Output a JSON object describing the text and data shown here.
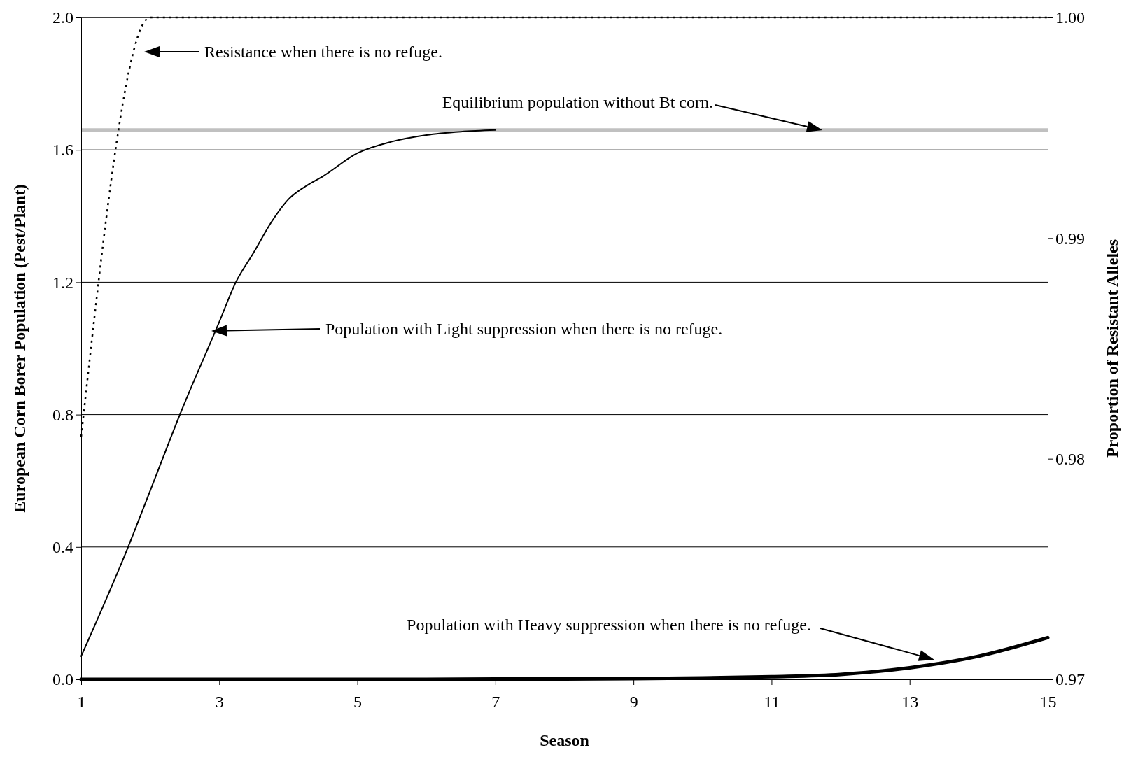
{
  "chart_data": {
    "type": "line",
    "xlabel": "Season",
    "ylabel": "European Corn Borer Population (Pest/Plant)",
    "y2label": "Proportion of Resistant Alleles",
    "xlim": [
      1,
      15
    ],
    "xticks": [
      1,
      3,
      5,
      7,
      9,
      11,
      13,
      15
    ],
    "ylim": [
      0,
      2
    ],
    "yticks": [
      {
        "value": 0,
        "label": "0.0"
      },
      {
        "value": 0.4,
        "label": "0.4"
      },
      {
        "value": 0.8,
        "label": "0.8"
      },
      {
        "value": 1.2,
        "label": "1.2"
      },
      {
        "value": 1.6,
        "label": "1.6"
      },
      {
        "value": 2,
        "label": "2.0"
      }
    ],
    "y2lim": [
      0.97,
      1
    ],
    "y2ticks": [
      0.97,
      0.98,
      0.99,
      {
        "value": 1,
        "label": "1.00"
      }
    ],
    "grid": "y",
    "marker": "none",
    "series": [
      {
        "color": "#000000",
        "line_style": "solid",
        "x": [
          1,
          1.68,
          2,
          2.43,
          3,
          3.24,
          3.5,
          3.75,
          4,
          4.25,
          4.5,
          5,
          5.5,
          6,
          6.5,
          7
        ],
        "values": [
          0.07,
          0.4,
          0.57,
          0.8,
          1.08,
          1.2,
          1.29,
          1.38,
          1.45,
          1.49,
          1.52,
          1.59,
          1.625,
          1.645,
          1.655,
          1.66
        ]
      },
      {
        "color": "#000000",
        "line_style": "solid",
        "x": [
          1,
          2,
          3,
          4,
          5,
          6,
          7,
          8,
          9,
          10,
          11,
          12,
          13,
          14,
          15
        ],
        "values": [
          0,
          0,
          0,
          0,
          0,
          0,
          0.001,
          0.001,
          0.002,
          0.004,
          0.008,
          0.015,
          0.035,
          0.07,
          0.126
        ]
      },
      {
        "color": "#000000",
        "line_style": "dotted",
        "axis": "y2",
        "x": [
          1,
          2,
          15
        ],
        "values": [
          0.981,
          1,
          1
        ]
      }
    ],
    "ref_lines": [
      {
        "axis": "y",
        "value": 1.66,
        "color": "#c0c0c0",
        "label": "Equilibrium population without Bt corn."
      }
    ],
    "annotations": [
      "Resistance when there is no refuge.",
      "Population with Light  suppression when there is no refuge.",
      "Population with Heavy  suppression when there is no refuge."
    ]
  }
}
